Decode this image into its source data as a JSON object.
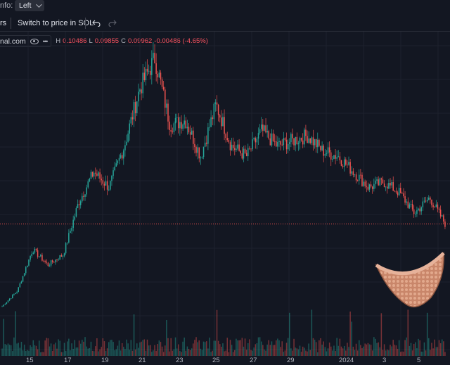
{
  "topbar": {
    "info_label": "nfo:",
    "dropdown_value": "Left"
  },
  "toolbar": {
    "left_fragment": "rs",
    "switch_label": "Switch to price in SOL",
    "undo_icon": "undo-icon",
    "redo_icon": "redo-icon"
  },
  "legend": {
    "symbol": "nal.com",
    "high_label": "H",
    "high": "0.10486",
    "low_label": "L",
    "low": "0.09855",
    "close_label": "C",
    "close": "0.09962",
    "change": "-0.00486 (-4.65%)"
  },
  "xaxis": {
    "ticks": [
      "15",
      "17",
      "19",
      "21",
      "23",
      "25",
      "27",
      "29",
      "2024",
      "3",
      "5"
    ]
  },
  "colors": {
    "up": "#26a69a",
    "down": "#ef5350",
    "background": "#131722",
    "price_line": "#ef5350"
  },
  "chart_data": {
    "type": "candlestick",
    "x_ticks": [
      "15",
      "17",
      "19",
      "21",
      "23",
      "25",
      "27",
      "29",
      "2024",
      "3",
      "5"
    ],
    "anchor_closes": [
      [
        0,
        0.02
      ],
      [
        1,
        0.035
      ],
      [
        2,
        0.075
      ],
      [
        3,
        0.06
      ],
      [
        4,
        0.07
      ],
      [
        5,
        0.12
      ],
      [
        6,
        0.15
      ],
      [
        7,
        0.135
      ],
      [
        8,
        0.175
      ],
      [
        9,
        0.23
      ],
      [
        10,
        0.26
      ],
      [
        11,
        0.195
      ],
      [
        12,
        0.2
      ],
      [
        13,
        0.165
      ],
      [
        14,
        0.215
      ],
      [
        15,
        0.175
      ],
      [
        16,
        0.165
      ],
      [
        17,
        0.19
      ],
      [
        18,
        0.175
      ],
      [
        19,
        0.18
      ],
      [
        20,
        0.185
      ],
      [
        21,
        0.17
      ],
      [
        22,
        0.165
      ],
      [
        23,
        0.15
      ],
      [
        24,
        0.135
      ],
      [
        25,
        0.14
      ],
      [
        26,
        0.13
      ],
      [
        27,
        0.11
      ],
      [
        28,
        0.125
      ],
      [
        29,
        0.1
      ]
    ],
    "last_close": 0.09962
  }
}
